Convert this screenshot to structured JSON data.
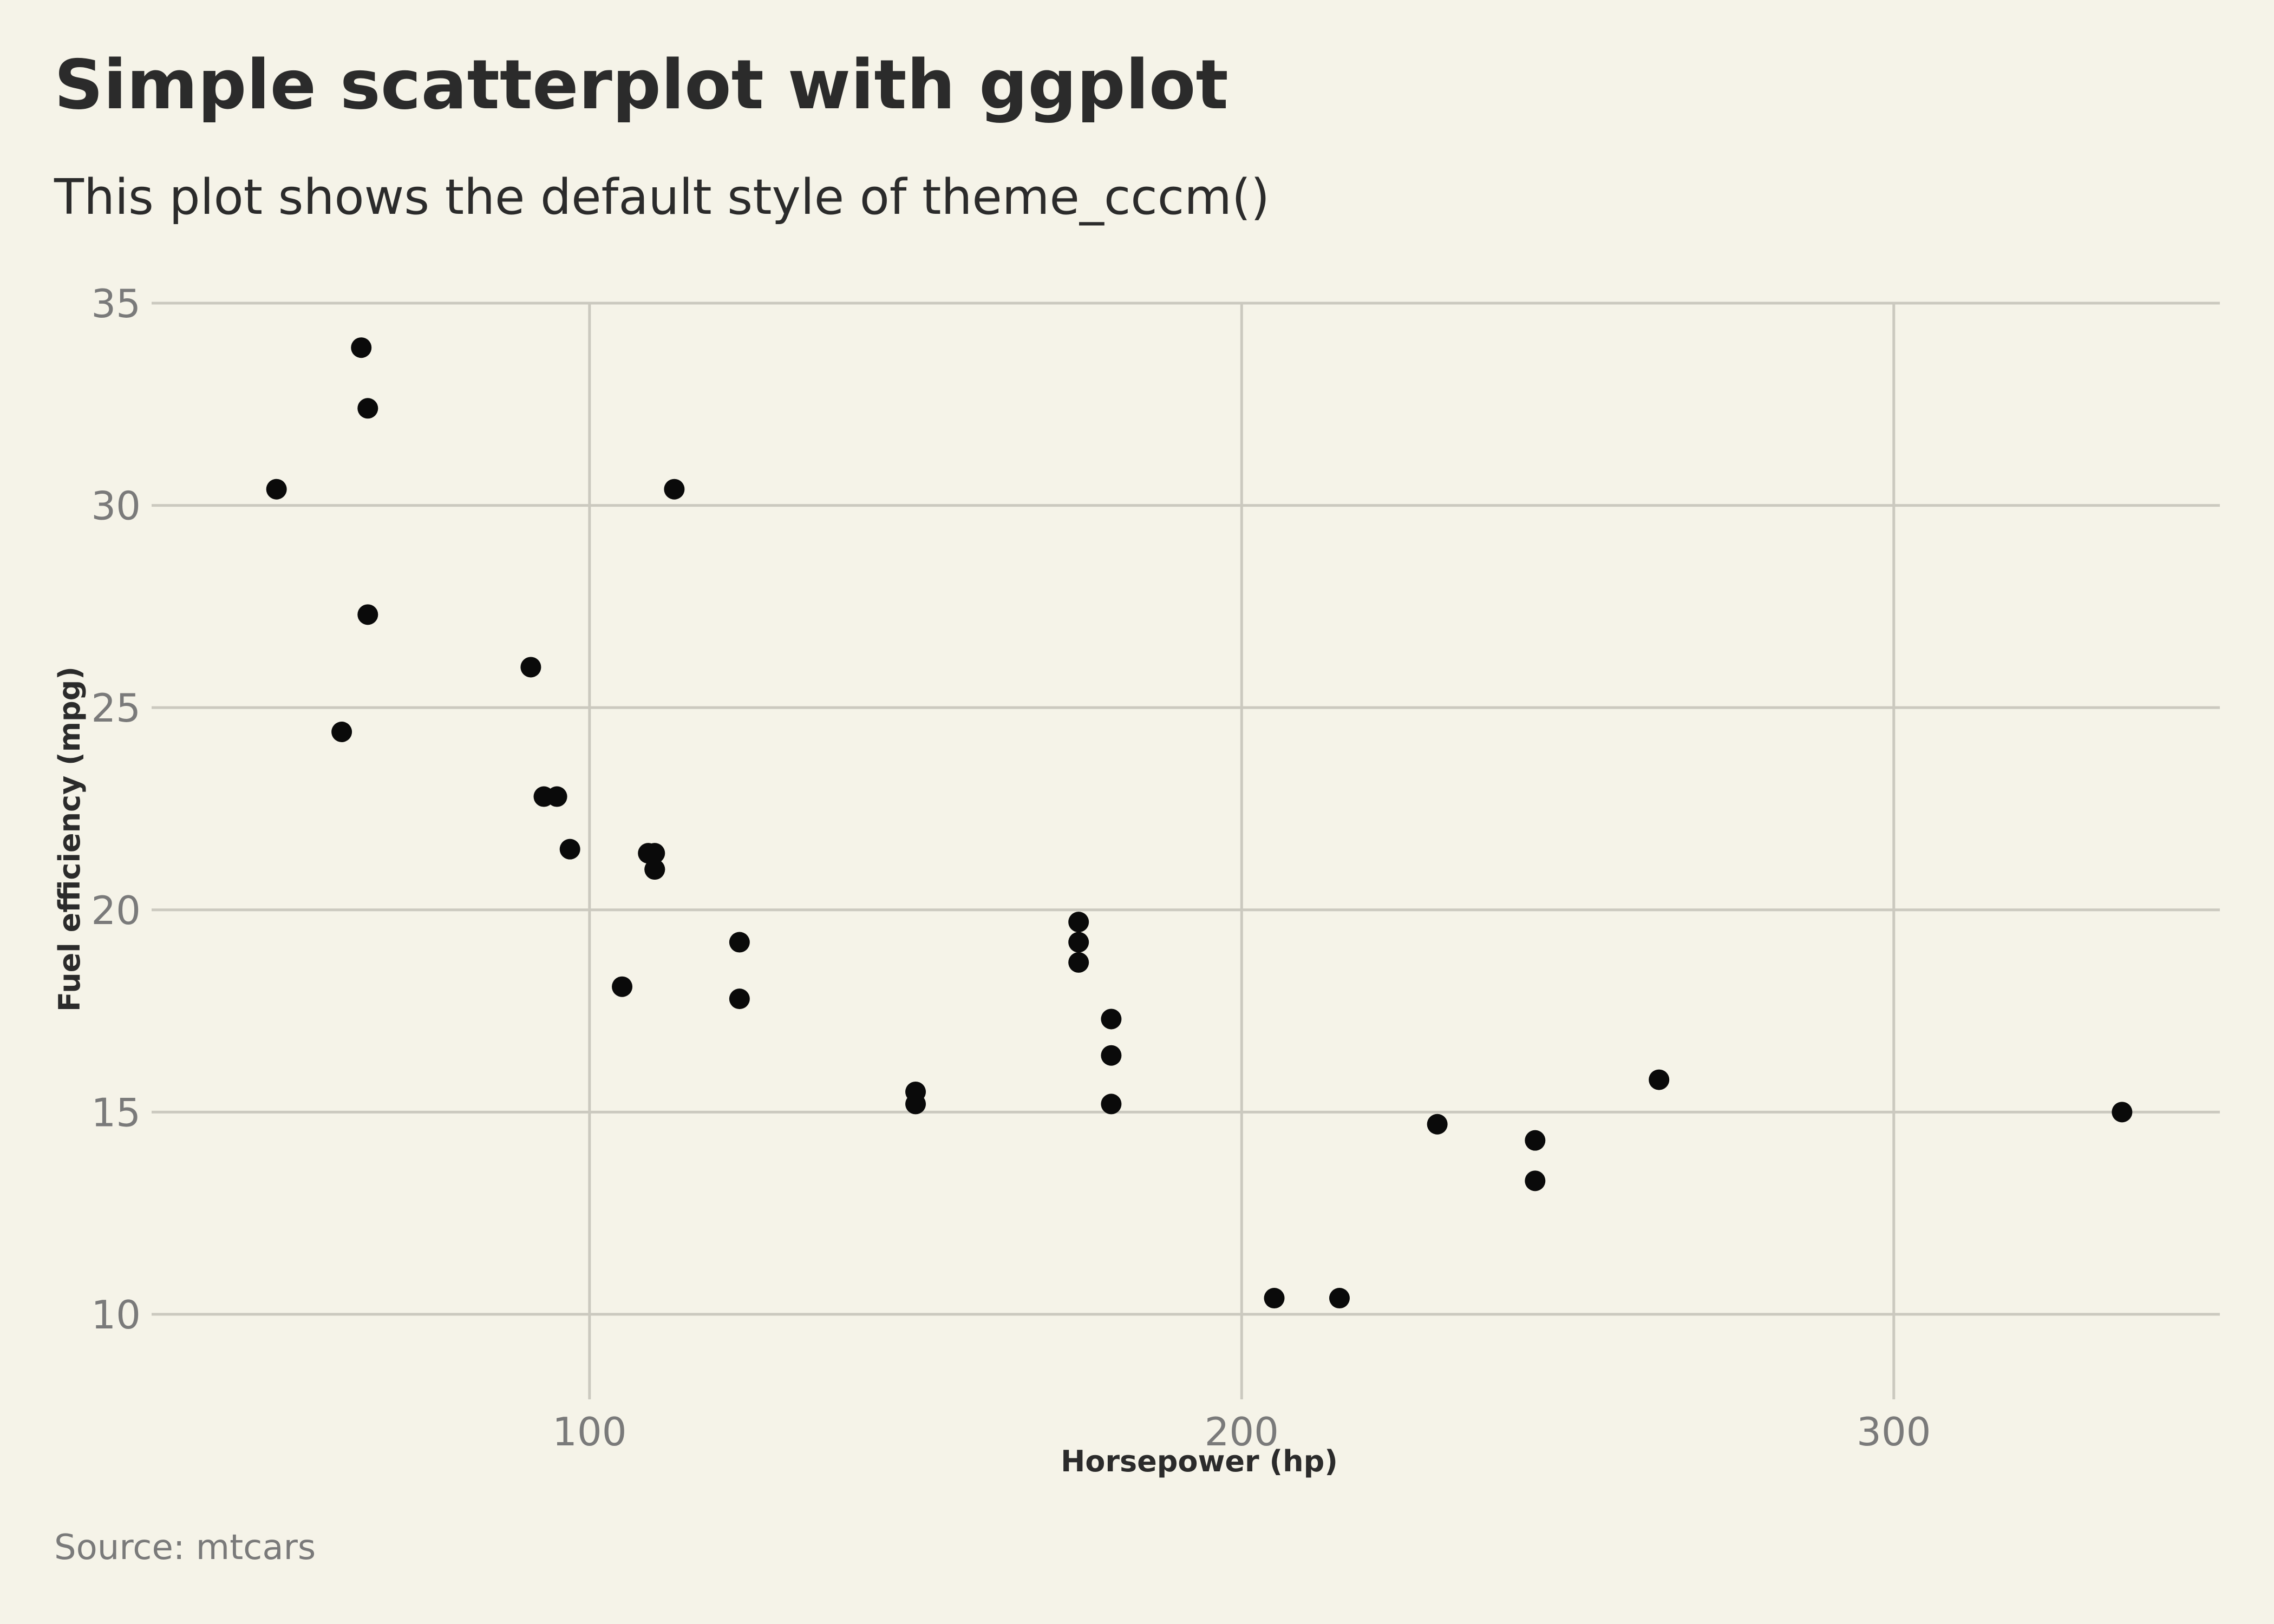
{
  "chart_data": {
    "type": "scatter",
    "title": "Simple scatterplot with ggplot",
    "subtitle": "This plot shows the default style of theme_cccm()",
    "xlabel": "Horsepower (hp)",
    "ylabel": "Fuel efficiency (mpg)",
    "caption": "Source: mtcars",
    "xlim": [
      37,
      350
    ],
    "ylim": [
      8.5,
      35
    ],
    "x_ticks": [
      100,
      200,
      300
    ],
    "y_ticks": [
      10,
      15,
      20,
      25,
      30,
      35
    ],
    "grid": true,
    "legend": "none",
    "colors": {
      "background": "#f5f3e8",
      "point": "#0a0a0a",
      "grid": "#cbc9bf"
    },
    "x": [
      110,
      110,
      93,
      110,
      175,
      105,
      245,
      62,
      95,
      123,
      123,
      180,
      180,
      180,
      205,
      215,
      230,
      66,
      52,
      65,
      97,
      150,
      150,
      245,
      175,
      66,
      91,
      113,
      264,
      175,
      335,
      109
    ],
    "y": [
      21.0,
      21.0,
      22.8,
      21.4,
      18.7,
      18.1,
      14.3,
      24.4,
      22.8,
      19.2,
      17.8,
      16.4,
      17.3,
      15.2,
      10.4,
      10.4,
      14.7,
      32.4,
      30.4,
      33.9,
      21.5,
      15.5,
      15.2,
      13.3,
      19.2,
      27.3,
      26.0,
      30.4,
      15.8,
      19.7,
      15.0,
      21.4
    ]
  }
}
